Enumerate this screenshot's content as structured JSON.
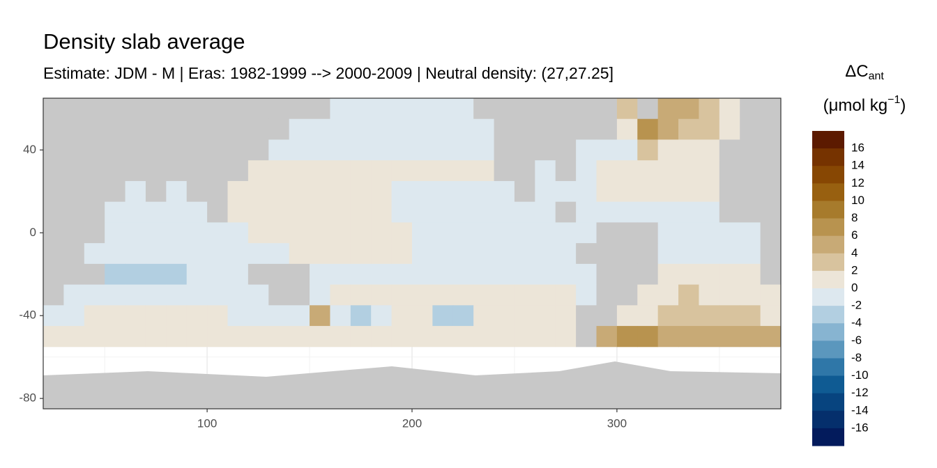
{
  "chart_data": {
    "type": "raster",
    "title": "Density slab average",
    "subtitle": "Estimate: JDM - M | Eras: 1982-1999 --> 2000-2009 | Neutral density: (27,27.25]",
    "xlim": [
      20,
      380
    ],
    "ylim": [
      -85,
      65
    ],
    "xticks": [
      100,
      200,
      300
    ],
    "yticks": [
      -80,
      -40,
      0,
      40
    ],
    "grid": true,
    "land_color": "#c8c8c8",
    "lon": [
      25,
      35,
      45,
      55,
      65,
      75,
      85,
      95,
      105,
      115,
      125,
      135,
      145,
      155,
      165,
      175,
      185,
      195,
      205,
      215,
      225,
      235,
      245,
      255,
      265,
      275,
      285,
      295,
      305,
      315,
      325,
      335,
      345,
      355,
      365,
      375
    ],
    "lat": [
      60,
      50,
      40,
      30,
      20,
      10,
      0,
      -10,
      -20,
      -30,
      -40,
      -50
    ],
    "values": [
      [
        null,
        null,
        null,
        null,
        null,
        null,
        null,
        null,
        null,
        null,
        null,
        null,
        null,
        null,
        -1,
        -1,
        -1,
        -1,
        -1,
        -1,
        -1,
        null,
        null,
        null,
        null,
        null,
        null,
        null,
        3,
        null,
        5,
        5,
        3,
        1,
        null,
        null
      ],
      [
        null,
        null,
        null,
        null,
        null,
        null,
        null,
        null,
        null,
        null,
        null,
        null,
        -1,
        -1,
        -1,
        -1,
        -1,
        -1,
        -1,
        -1,
        -1,
        -1,
        null,
        null,
        null,
        null,
        null,
        null,
        1,
        7,
        5,
        3,
        3,
        1,
        null,
        null
      ],
      [
        null,
        null,
        null,
        null,
        null,
        null,
        null,
        null,
        null,
        null,
        null,
        -1,
        -1,
        -1,
        -1,
        -1,
        -1,
        -1,
        -1,
        -1,
        -1,
        -1,
        null,
        null,
        null,
        null,
        -1,
        -1,
        -1,
        3,
        1,
        1,
        1,
        null,
        null,
        null
      ],
      [
        null,
        null,
        null,
        null,
        null,
        null,
        null,
        null,
        null,
        null,
        1,
        1,
        1,
        1,
        1,
        1,
        1,
        1,
        1,
        1,
        1,
        1,
        null,
        null,
        -1,
        null,
        -1,
        1,
        1,
        1,
        1,
        1,
        1,
        null,
        null,
        null
      ],
      [
        null,
        null,
        null,
        null,
        -1,
        null,
        -1,
        null,
        null,
        1,
        1,
        1,
        1,
        1,
        1,
        1,
        1,
        -1,
        -1,
        -1,
        -1,
        -1,
        -1,
        null,
        -1,
        -1,
        -1,
        1,
        1,
        1,
        1,
        1,
        1,
        null,
        null,
        null
      ],
      [
        null,
        null,
        null,
        -1,
        -1,
        -1,
        -1,
        -1,
        null,
        1,
        1,
        1,
        1,
        1,
        1,
        1,
        1,
        -1,
        -1,
        -1,
        -1,
        -1,
        -1,
        -1,
        -1,
        null,
        -1,
        -1,
        -1,
        -1,
        -1,
        -1,
        -1,
        null,
        null,
        null
      ],
      [
        null,
        null,
        null,
        -1,
        -1,
        -1,
        -1,
        -1,
        -1,
        -1,
        1,
        1,
        1,
        1,
        1,
        1,
        1,
        1,
        -1,
        -1,
        -1,
        -1,
        -1,
        -1,
        -1,
        -1,
        -1,
        null,
        null,
        null,
        -1,
        -1,
        -1,
        -1,
        -1,
        null
      ],
      [
        null,
        null,
        -1,
        -1,
        -1,
        -1,
        -1,
        -1,
        -1,
        -1,
        -1,
        -1,
        1,
        1,
        1,
        1,
        1,
        1,
        -1,
        -1,
        -1,
        -1,
        -1,
        -1,
        -1,
        -1,
        null,
        null,
        null,
        null,
        -1,
        -1,
        -1,
        -1,
        -1,
        null
      ],
      [
        null,
        null,
        null,
        -3,
        -3,
        -3,
        -3,
        -1,
        -1,
        -1,
        null,
        null,
        null,
        -1,
        -1,
        -1,
        -1,
        -1,
        -1,
        -1,
        -1,
        -1,
        -1,
        -1,
        -1,
        -1,
        -1,
        null,
        null,
        null,
        1,
        1,
        1,
        1,
        1,
        null
      ],
      [
        null,
        -1,
        -1,
        -1,
        -1,
        -1,
        -1,
        -1,
        -1,
        -1,
        -1,
        null,
        null,
        -1,
        1,
        1,
        1,
        1,
        1,
        1,
        1,
        1,
        1,
        1,
        1,
        1,
        -1,
        null,
        null,
        1,
        1,
        3,
        1,
        1,
        1,
        1
      ],
      [
        -1,
        -1,
        1,
        1,
        1,
        1,
        1,
        1,
        1,
        -1,
        -1,
        -1,
        -1,
        5,
        -1,
        -3,
        -1,
        1,
        1,
        -3,
        -3,
        1,
        1,
        1,
        1,
        1,
        null,
        null,
        1,
        1,
        3,
        3,
        3,
        3,
        3,
        1
      ],
      [
        1,
        1,
        1,
        1,
        1,
        1,
        1,
        1,
        1,
        1,
        1,
        1,
        1,
        1,
        1,
        1,
        1,
        1,
        1,
        1,
        1,
        1,
        1,
        1,
        1,
        1,
        null,
        5,
        7,
        7,
        5,
        5,
        5,
        5,
        5,
        5
      ]
    ],
    "legend_title": {
      "symbol": "ΔC",
      "subscript": "ant",
      "unit": "(μmol kg",
      "superscript": "−1",
      "unit_close": ")"
    },
    "legend_breaks": [
      16,
      14,
      12,
      10,
      8,
      6,
      4,
      2,
      0,
      -2,
      -4,
      -6,
      -8,
      -10,
      -12,
      -14,
      -16
    ],
    "legend_colors": [
      "#5c1a00",
      "#763300",
      "#874703",
      "#986010",
      "#a77b2c",
      "#b8934f",
      "#c8aa76",
      "#d8c39e",
      "#ece5d8",
      "#dde8ef",
      "#b2cfe1",
      "#87b4d1",
      "#5b97bd",
      "#2f77a8",
      "#0f5b93",
      "#07447f",
      "#052f6c",
      "#031b5c"
    ]
  }
}
